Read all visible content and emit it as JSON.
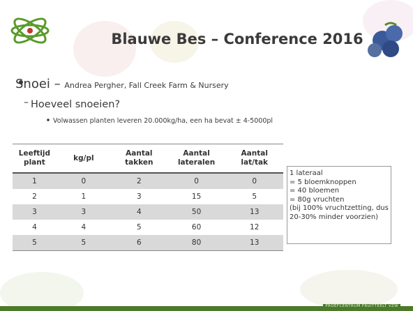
{
  "title": "Blauwe Bes – Conference 2016",
  "bullet": {
    "heading": "Snoei –",
    "source": "Andrea Pergher, Fall Creek Farm & Nursery",
    "sub": "Hoeveel snoeien?",
    "detail": "Volwassen planten leveren 20.000kg/ha, een ha bevat ± 4-5000pl"
  },
  "table": {
    "header": [
      "Leeftijd plant",
      "kg/pl",
      "Aantal takken",
      "Aantal lateralen",
      "Aantal lat/tak"
    ],
    "rows": [
      [
        "1",
        "0",
        "2",
        "0",
        "0"
      ],
      [
        "2",
        "1",
        "3",
        "15",
        "5"
      ],
      [
        "3",
        "3",
        "4",
        "50",
        "13"
      ],
      [
        "4",
        "4",
        "5",
        "60",
        "12"
      ],
      [
        "5",
        "5",
        "6",
        "80",
        "13"
      ]
    ]
  },
  "note": [
    "1 lateraal",
    "= 5 bloemknoppen",
    "= 40 bloemen",
    "= 80g vruchten",
    " (bij 100% vruchtzetting, dus 20-30% minder voorzien)"
  ],
  "footer": "PROEFCENTRUM FRUITTEELT VZW"
}
